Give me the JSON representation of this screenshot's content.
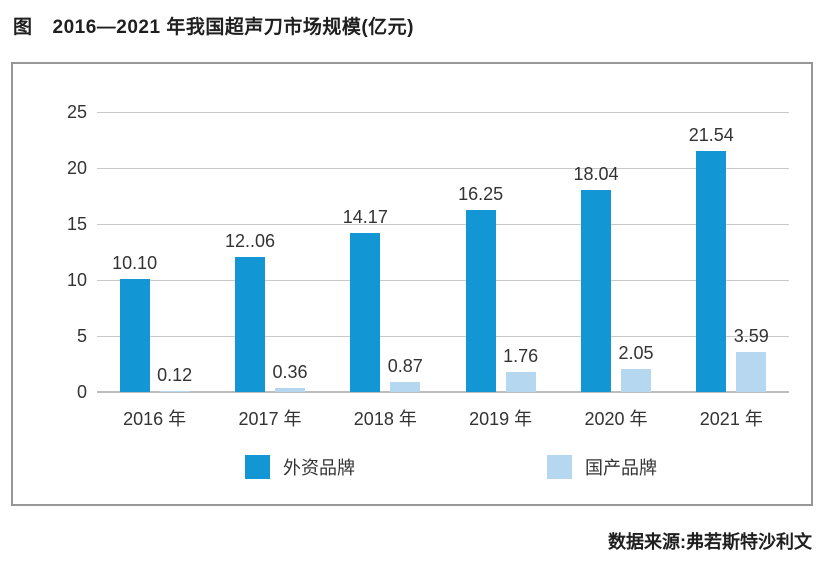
{
  "figure": {
    "label": "图",
    "title": "2016—2021 年我国超声刀市场规模(亿元)"
  },
  "source": "数据来源:弗若斯特沙利文",
  "colors": {
    "foreign": "#1297D4",
    "domestic": "#B5D8F0",
    "grid": "#C9C9C9",
    "axis": "#BDBDBD",
    "text": "#333333"
  },
  "chart_data": {
    "type": "bar",
    "title": "图 2016—2021 年我国超声刀市场规模(亿元)",
    "categories": [
      "2016 年",
      "2017 年",
      "2018 年",
      "2019 年",
      "2020 年",
      "2021 年"
    ],
    "series": [
      {
        "name": "外资品牌",
        "color_key": "foreign",
        "values": [
          10.1,
          12.06,
          14.17,
          16.25,
          18.04,
          21.54
        ],
        "labels": [
          "10.10",
          "12..06",
          "14.17",
          "16.25",
          "18.04",
          "21.54"
        ]
      },
      {
        "name": "国产品牌",
        "color_key": "domestic",
        "values": [
          0.12,
          0.36,
          0.87,
          1.76,
          2.05,
          3.59
        ],
        "labels": [
          "0.12",
          "0.36",
          "0.87",
          "1.76",
          "2.05",
          "3.59"
        ]
      }
    ],
    "xlabel": "",
    "ylabel": "",
    "ylim": [
      0,
      25
    ],
    "yticks": [
      0,
      5,
      10,
      15,
      20,
      25
    ],
    "grid": true,
    "legend_position": "bottom-inside"
  }
}
